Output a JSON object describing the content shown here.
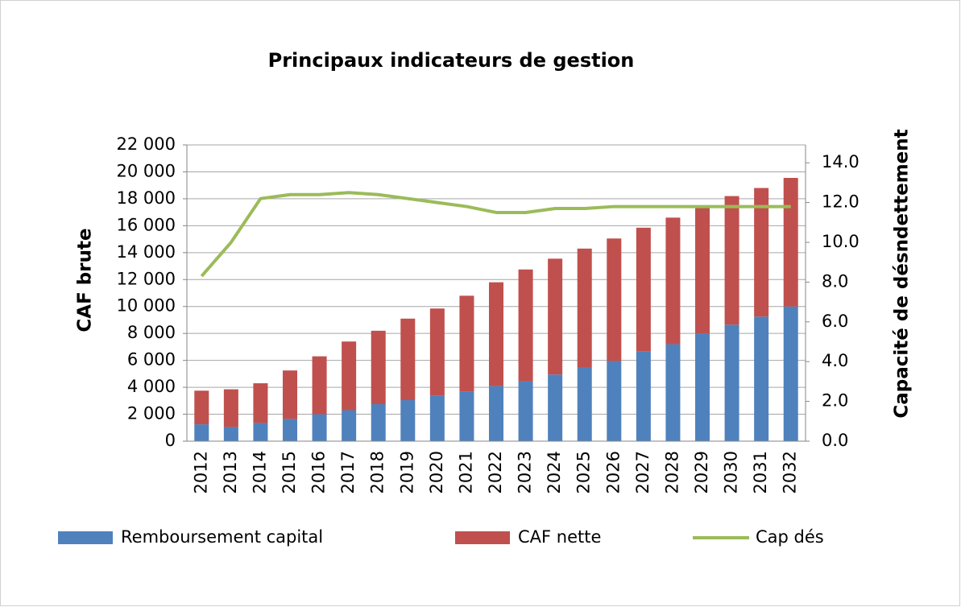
{
  "chart_data": {
    "type": "bar",
    "title": "Principaux indicateurs de gestion",
    "y_label": "CAF brute",
    "y2_label": "Capacité  de désndettement",
    "categories": [
      "2012",
      "2013",
      "2014",
      "2015",
      "2016",
      "2017",
      "2018",
      "2019",
      "2020",
      "2021",
      "2022",
      "2023",
      "2024",
      "2025",
      "2026",
      "2027",
      "2028",
      "2029",
      "2030",
      "2031",
      "2032"
    ],
    "stacked": true,
    "grid": true,
    "legend": "bottom",
    "series": [
      {
        "name": "Remboursement capital",
        "type": "bar",
        "color": "#4f81bd",
        "values": [
          1250,
          1050,
          1350,
          1650,
          2000,
          2300,
          2750,
          3050,
          3400,
          3700,
          4100,
          4450,
          4950,
          5500,
          5950,
          6650,
          7200,
          8000,
          8650,
          9250,
          10000
        ]
      },
      {
        "name": "CAF nette",
        "type": "bar",
        "color": "#c0504d",
        "values": [
          2500,
          2800,
          2950,
          3600,
          4300,
          5100,
          5450,
          6050,
          6450,
          7100,
          7700,
          8300,
          8600,
          8800,
          9100,
          9200,
          9400,
          9400,
          9550,
          9550,
          9550
        ]
      },
      {
        "name": "Cap dés",
        "type": "line",
        "axis": "y2",
        "color": "#9bbb59",
        "values": [
          8.3,
          10.0,
          12.2,
          12.4,
          12.4,
          12.5,
          12.4,
          12.2,
          12.0,
          11.8,
          11.5,
          11.5,
          11.7,
          11.7,
          11.8,
          11.8,
          11.8,
          11.8,
          11.8,
          11.8,
          11.8
        ]
      }
    ],
    "ylim": [
      0,
      22000
    ],
    "yticks": [
      0,
      {
        "value": 2000,
        "label": "2 000"
      },
      {
        "value": 4000,
        "label": "4 000"
      },
      {
        "value": 6000,
        "label": "6 000"
      },
      {
        "value": 8000,
        "label": "8 000"
      },
      {
        "value": 10000,
        "label": "10 000"
      },
      {
        "value": 12000,
        "label": "12 000"
      },
      {
        "value": 14000,
        "label": "14 000"
      },
      {
        "value": 16000,
        "label": "16 000"
      },
      {
        "value": 18000,
        "label": "18 000"
      },
      {
        "value": 20000,
        "label": "20 000"
      },
      {
        "value": 22000,
        "label": "22 000"
      }
    ],
    "y2lim": [
      0,
      14.9
    ],
    "y2ticks": [
      {
        "value": 0,
        "label": "0.0"
      },
      {
        "value": 2,
        "label": "2.0"
      },
      {
        "value": 4,
        "label": "4.0"
      },
      {
        "value": 6,
        "label": "6.0"
      },
      {
        "value": 8,
        "label": "8.0"
      },
      {
        "value": 10,
        "label": "10.0"
      },
      {
        "value": 12,
        "label": "12.0"
      },
      {
        "value": 14,
        "label": "14.0"
      }
    ]
  }
}
